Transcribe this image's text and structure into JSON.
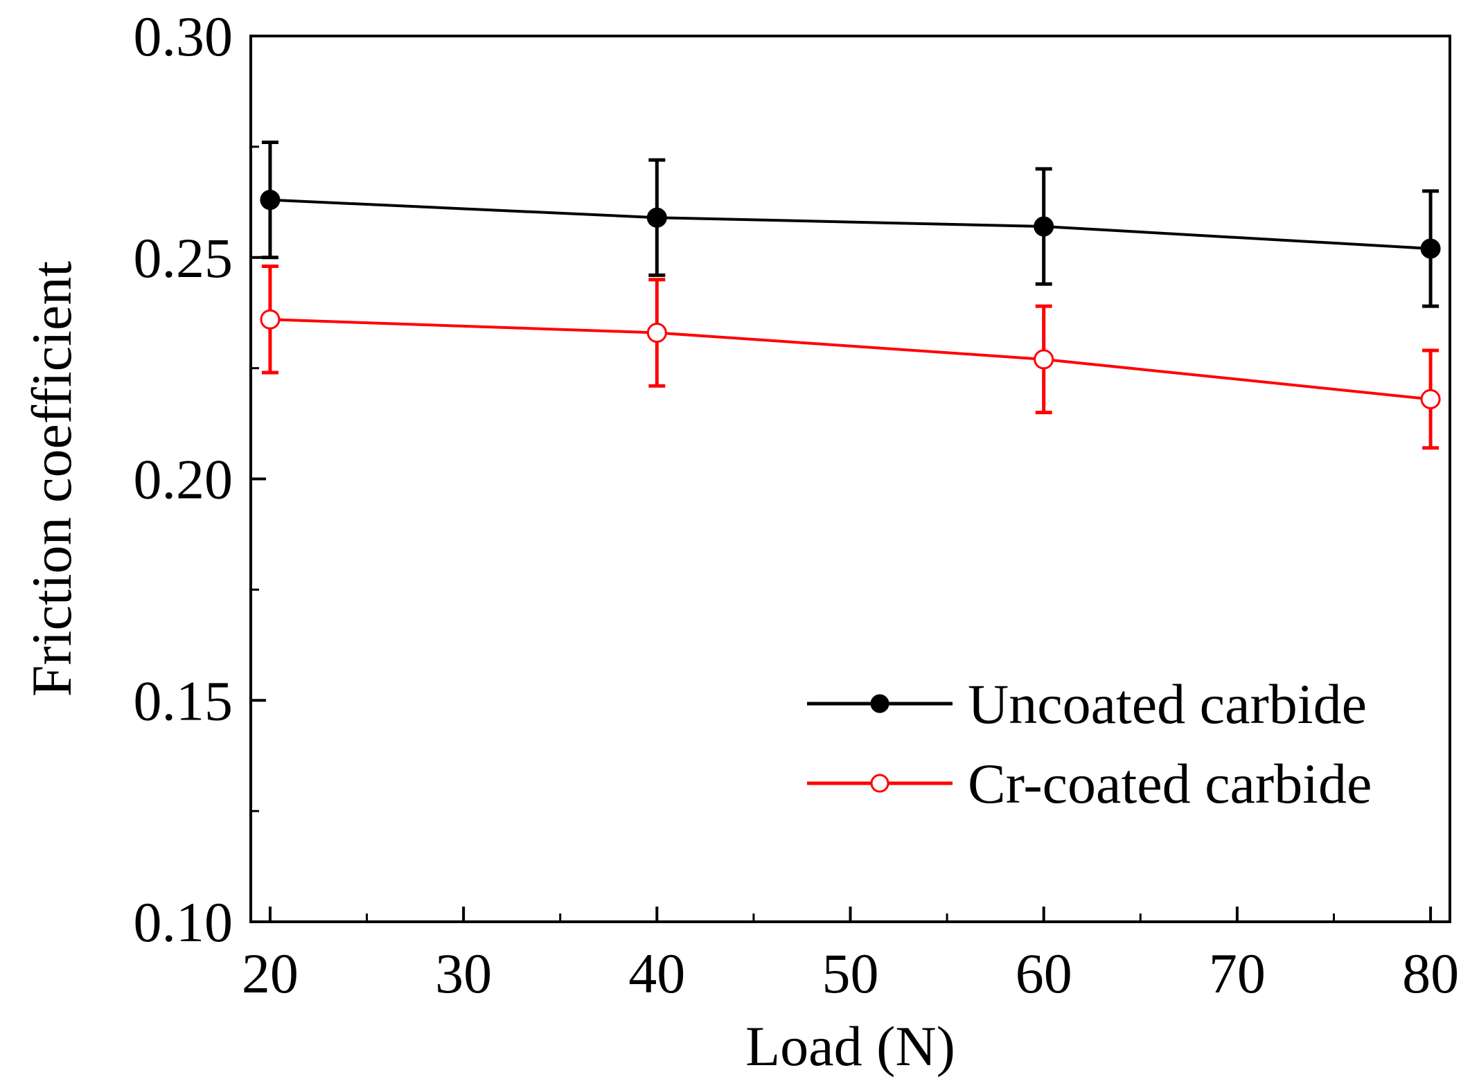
{
  "chart_data": {
    "type": "line",
    "title": "",
    "xlabel": "Load (N)",
    "ylabel": "Friction coefficient",
    "xlim": [
      19,
      81
    ],
    "ylim": [
      0.1,
      0.3
    ],
    "x_ticks": [
      20,
      30,
      40,
      50,
      60,
      70,
      80
    ],
    "x_tick_labels": [
      "20",
      "30",
      "40",
      "50",
      "60",
      "70",
      "80"
    ],
    "x_minor_ticks": [
      25,
      35,
      45,
      55,
      65,
      75
    ],
    "y_ticks": [
      0.1,
      0.15,
      0.2,
      0.25,
      0.3
    ],
    "y_tick_labels": [
      "0.10",
      "0.15",
      "0.20",
      "0.25",
      "0.30"
    ],
    "y_minor_ticks": [
      0.125,
      0.175,
      0.225,
      0.275
    ],
    "grid": false,
    "legend_position": "bottom-right",
    "series": [
      {
        "name": "Uncoated carbide",
        "color": "#000000",
        "marker": "filled-circle",
        "x": [
          20,
          40,
          60,
          80
        ],
        "values": [
          0.263,
          0.259,
          0.257,
          0.252
        ],
        "error": [
          0.013,
          0.013,
          0.013,
          0.013
        ]
      },
      {
        "name": "Cr-coated carbide",
        "color": "#ff0000",
        "marker": "open-circle",
        "x": [
          20,
          40,
          60,
          80
        ],
        "values": [
          0.236,
          0.233,
          0.227,
          0.218
        ],
        "error": [
          0.012,
          0.012,
          0.012,
          0.011
        ]
      }
    ]
  }
}
